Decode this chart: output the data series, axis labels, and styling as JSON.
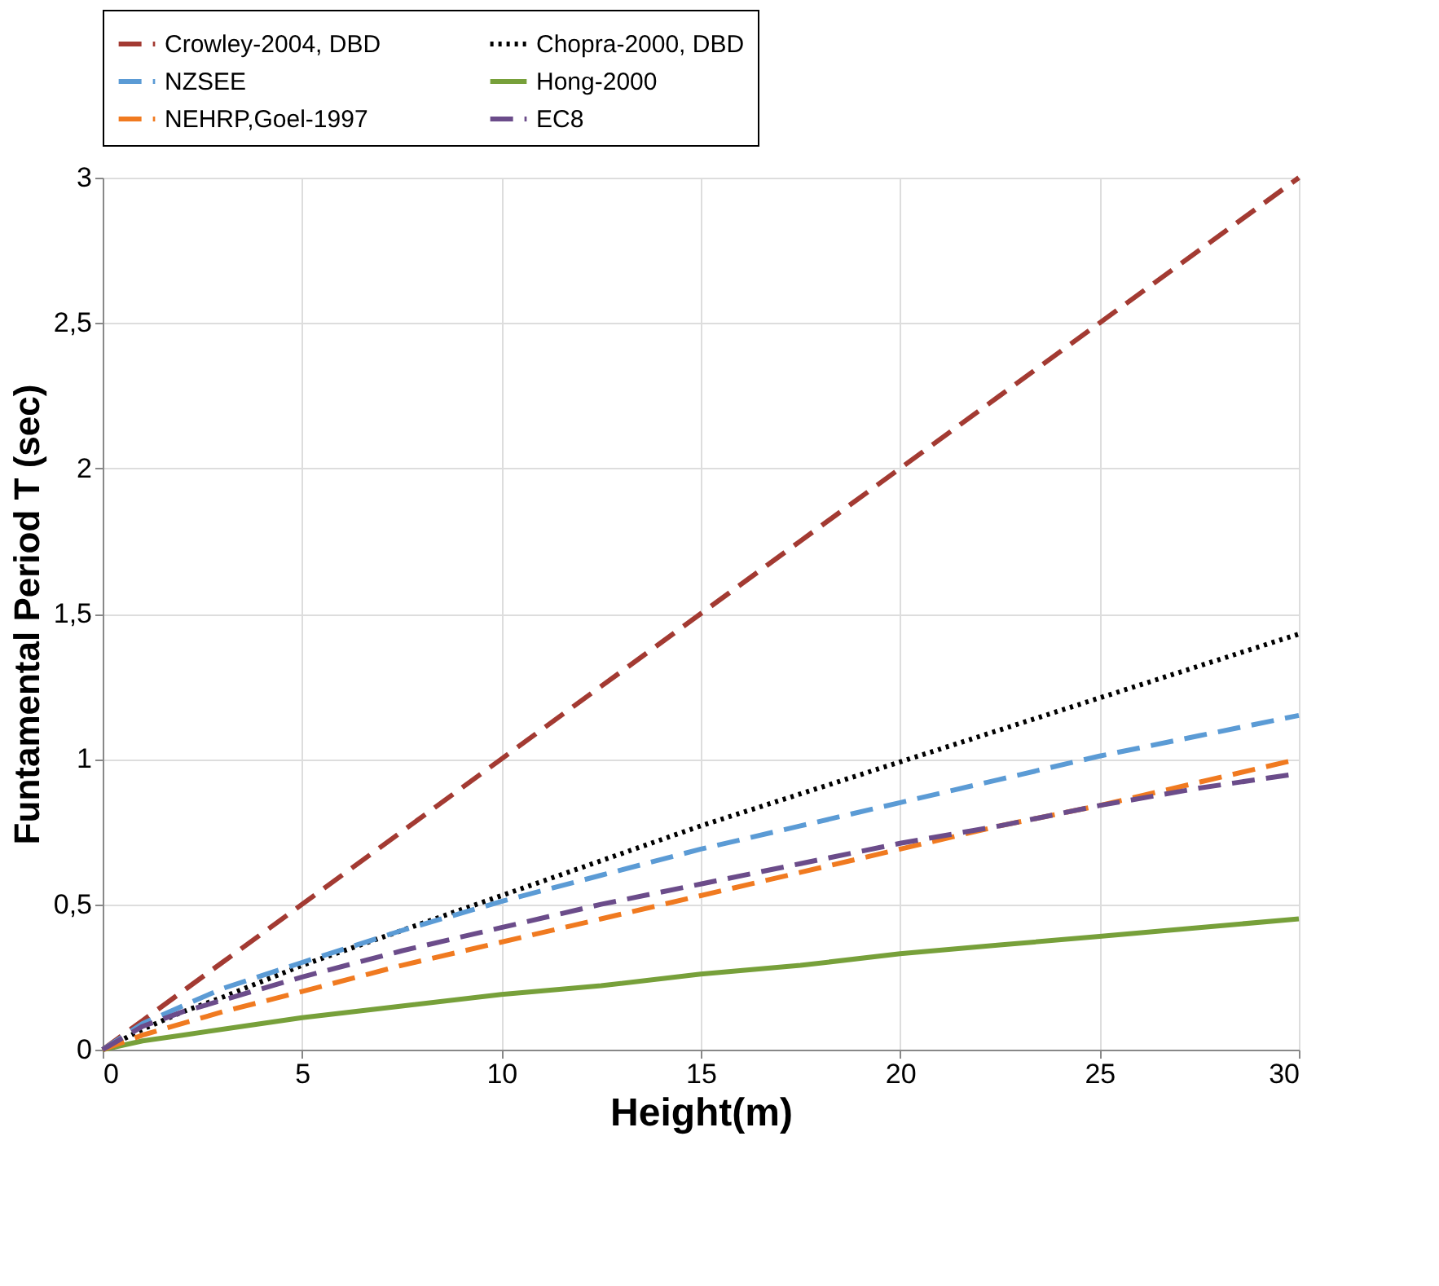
{
  "chart_data": {
    "type": "line",
    "xlabel": "Height(m)",
    "ylabel": "Funtamental Period T (sec)",
    "x": [
      0,
      1,
      2,
      3,
      5,
      7.5,
      10,
      12.5,
      15,
      17.5,
      20,
      22.5,
      25,
      27.5,
      30
    ],
    "series": [
      {
        "name": "Crowley-2004, DBD",
        "color": "#a33a32",
        "line_style": "dashed",
        "values": [
          0,
          0.1,
          0.2,
          0.3,
          0.5,
          0.75,
          1,
          1.25,
          1.5,
          1.75,
          2,
          2.25,
          2.5,
          2.75,
          3
        ]
      },
      {
        "name": "Chopra-2000, DBD",
        "color": "#000000",
        "line_style": "dotted",
        "values": [
          0,
          0.07,
          0.13,
          0.18,
          0.29,
          0.41,
          0.53,
          0.65,
          0.77,
          0.88,
          0.99,
          1.1,
          1.21,
          1.32,
          1.43
        ]
      },
      {
        "name": "NZSEE",
        "color": "#5b9bd5",
        "line_style": "dashed",
        "values": [
          0,
          0.09,
          0.15,
          0.21,
          0.3,
          0.41,
          0.51,
          0.6,
          0.69,
          0.77,
          0.85,
          0.93,
          1.01,
          1.08,
          1.15
        ]
      },
      {
        "name": "Hong-2000",
        "color": "#77a03a",
        "line_style": "solid",
        "values": [
          0,
          0.03,
          0.05,
          0.07,
          0.11,
          0.15,
          0.19,
          0.22,
          0.26,
          0.29,
          0.33,
          0.36,
          0.39,
          0.42,
          0.45
        ]
      },
      {
        "name": "NEHRP,Goel-1997",
        "color": "#f07a20",
        "line_style": "dashed",
        "values": [
          0,
          0.05,
          0.09,
          0.13,
          0.2,
          0.29,
          0.37,
          0.45,
          0.53,
          0.61,
          0.69,
          0.77,
          0.84,
          0.92,
          1.0
        ]
      },
      {
        "name": "EC8",
        "color": "#6b4c8a",
        "line_style": "dashed",
        "values": [
          0,
          0.08,
          0.13,
          0.17,
          0.25,
          0.34,
          0.42,
          0.5,
          0.57,
          0.64,
          0.71,
          0.77,
          0.84,
          0.9,
          0.95
        ]
      }
    ],
    "xlim": [
      0,
      30
    ],
    "xticks": [
      0,
      5,
      10,
      15,
      20,
      25,
      30
    ],
    "ylim": [
      0,
      3
    ],
    "yticks": [
      0,
      {
        "value": 0.5,
        "label": "0,5"
      },
      1,
      {
        "value": 1.5,
        "label": "1,5"
      },
      2,
      {
        "value": 2.5,
        "label": "2,5"
      },
      3
    ],
    "grid": true,
    "legend": "top",
    "marker": "none"
  }
}
